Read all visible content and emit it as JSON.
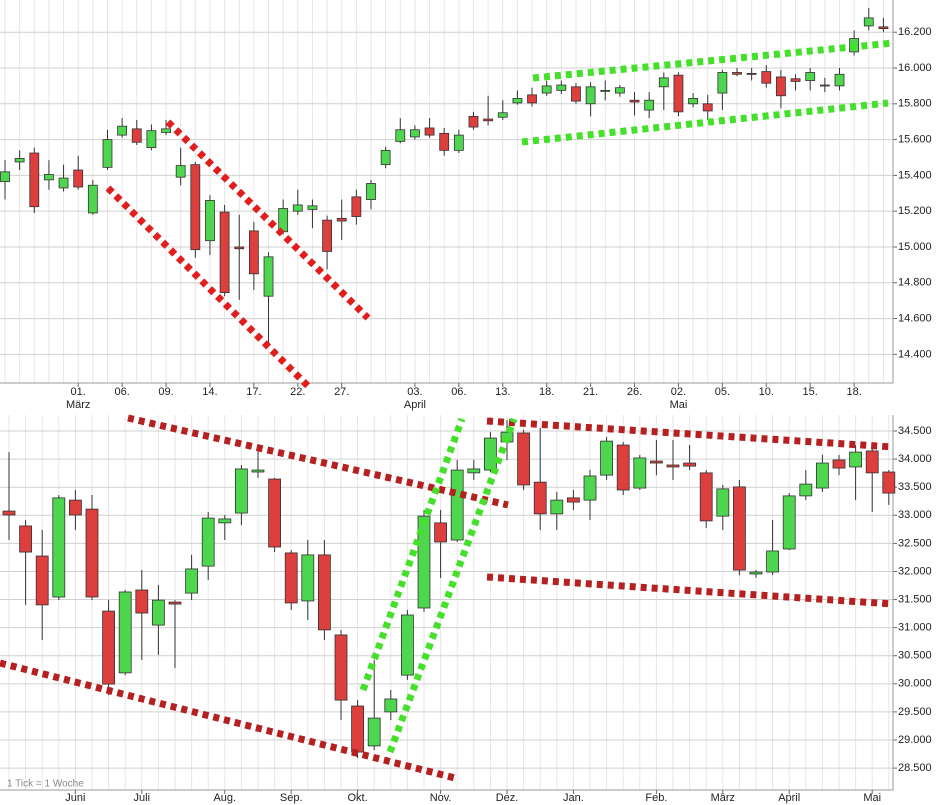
{
  "chart_data": [
    {
      "type": "candlestick",
      "categories": [
        null,
        null,
        null,
        null,
        null,
        "01.",
        null,
        null,
        "06.",
        null,
        null,
        "09.",
        null,
        null,
        "14.",
        null,
        null,
        "17.",
        null,
        null,
        "22.",
        null,
        null,
        "27.",
        null,
        null,
        null,
        null,
        "03.",
        null,
        null,
        "06.",
        null,
        null,
        "13.",
        null,
        null,
        "18.",
        null,
        null,
        "21.",
        null,
        null,
        "26.",
        null,
        null,
        "02.",
        null,
        null,
        "05.",
        null,
        null,
        "10.",
        null,
        null,
        "15.",
        null,
        null,
        "18.",
        null,
        null
      ],
      "category_groups": [
        null,
        null,
        null,
        null,
        null,
        "März",
        null,
        null,
        null,
        null,
        null,
        null,
        null,
        null,
        null,
        null,
        null,
        null,
        null,
        null,
        null,
        null,
        null,
        null,
        null,
        null,
        null,
        null,
        "April",
        null,
        null,
        null,
        null,
        null,
        null,
        null,
        null,
        null,
        null,
        null,
        null,
        null,
        null,
        null,
        null,
        null,
        "Mai",
        null,
        null,
        null,
        null,
        null,
        null,
        null,
        null,
        null,
        null,
        null,
        null,
        null,
        null
      ],
      "open": [
        15365,
        15475,
        15525,
        15375,
        15330,
        15430,
        15190,
        15445,
        15625,
        15660,
        15555,
        15640,
        15390,
        15460,
        15035,
        15195,
        15000,
        15090,
        14725,
        15085,
        15200,
        15210,
        15150,
        15160,
        15280,
        15265,
        15460,
        15590,
        15615,
        15665,
        15635,
        15540,
        15730,
        15715,
        15725,
        15805,
        15850,
        15860,
        15875,
        15895,
        15800,
        15870,
        15860,
        15820,
        15765,
        15895,
        15960,
        15800,
        15800,
        15860,
        15975,
        15970,
        15980,
        15950,
        15940,
        15930,
        15905,
        15900,
        16090,
        16235,
        16230
      ],
      "high": [
        15485,
        15540,
        15555,
        15485,
        15460,
        15510,
        15375,
        15655,
        15720,
        15710,
        15685,
        15710,
        15555,
        15475,
        15290,
        15235,
        15180,
        15140,
        14970,
        15265,
        15320,
        15265,
        15175,
        15265,
        15320,
        15375,
        15560,
        15720,
        15680,
        15720,
        15665,
        15655,
        15755,
        15845,
        15820,
        15875,
        15890,
        15930,
        15930,
        15915,
        15920,
        15930,
        15905,
        15865,
        15865,
        15975,
        15975,
        15860,
        15850,
        15990,
        16000,
        16000,
        16015,
        15990,
        15965,
        16000,
        15945,
        16000,
        16210,
        16335,
        16280
      ],
      "low": [
        15265,
        15430,
        15190,
        15320,
        15310,
        15320,
        15180,
        15430,
        15610,
        15570,
        15540,
        15625,
        15345,
        14940,
        14955,
        14725,
        14705,
        14760,
        14455,
        15070,
        15180,
        15105,
        14875,
        15040,
        15125,
        15210,
        15440,
        15580,
        15600,
        15610,
        15510,
        15525,
        15655,
        15680,
        15710,
        15795,
        15785,
        15845,
        15855,
        15800,
        15730,
        15820,
        15840,
        15735,
        15720,
        15765,
        15730,
        15780,
        15710,
        15765,
        15955,
        15930,
        15890,
        15775,
        15875,
        15875,
        15865,
        15875,
        16070,
        16210,
        16200
      ],
      "close": [
        15420,
        15495,
        15225,
        15405,
        15385,
        15335,
        15345,
        15600,
        15675,
        15585,
        15650,
        15660,
        15455,
        14985,
        15260,
        14745,
        14990,
        14850,
        14945,
        15215,
        15235,
        15230,
        14975,
        15145,
        15170,
        15355,
        15540,
        15655,
        15655,
        15625,
        15540,
        15625,
        15670,
        15705,
        15750,
        15830,
        15805,
        15900,
        15905,
        15815,
        15895,
        15875,
        15890,
        15810,
        15820,
        15945,
        15755,
        15830,
        15760,
        15975,
        15965,
        15965,
        15915,
        15845,
        15925,
        15975,
        15900,
        15965,
        16165,
        16280,
        16220
      ],
      "up_color": "#4fd64f",
      "down_color": "#dd3f3f",
      "ylim": [
        14240,
        16380
      ],
      "yticks": [
        {
          "value": 14400,
          "label": "14.400"
        },
        {
          "value": 14600,
          "label": "14.600"
        },
        {
          "value": 14800,
          "label": "14.800"
        },
        {
          "value": 15000,
          "label": "15.000"
        },
        {
          "value": 15200,
          "label": "15.200"
        },
        {
          "value": 15400,
          "label": "15.400"
        },
        {
          "value": 15600,
          "label": "15.600"
        },
        {
          "value": 15800,
          "label": "15.800"
        },
        {
          "value": 16000,
          "label": "16.000"
        },
        {
          "value": 16200,
          "label": "16.200"
        }
      ],
      "grid": true
    },
    {
      "type": "candlestick",
      "annotation": "1 Tick = 1 Woche",
      "categories": [
        null,
        null,
        null,
        null,
        "Juni",
        null,
        null,
        null,
        "Juli",
        null,
        null,
        null,
        null,
        "Aug.",
        null,
        null,
        null,
        "Sep.",
        null,
        null,
        null,
        "Okt.",
        null,
        null,
        null,
        null,
        "Nov.",
        null,
        null,
        null,
        "Dez.",
        null,
        null,
        null,
        "Jan.",
        null,
        null,
        null,
        null,
        "Feb.",
        null,
        null,
        null,
        "März",
        null,
        null,
        null,
        "April",
        null,
        null,
        null,
        null,
        "Mai",
        null
      ],
      "open": [
        33075,
        32810,
        32275,
        31545,
        33270,
        33110,
        31295,
        30195,
        31670,
        31045,
        31455,
        31615,
        32095,
        32865,
        33040,
        33770,
        33645,
        32330,
        31475,
        32295,
        30870,
        29605,
        28895,
        29500,
        30155,
        31350,
        32865,
        32560,
        33755,
        33805,
        34305,
        34465,
        33590,
        33025,
        33310,
        33270,
        33715,
        34250,
        33485,
        33965,
        33895,
        33930,
        33755,
        32985,
        33505,
        31955,
        31990,
        32400,
        33345,
        33485,
        33985,
        33860,
        34145,
        33770
      ],
      "high": [
        34125,
        32915,
        32740,
        33360,
        33450,
        33360,
        31490,
        31670,
        32025,
        31760,
        31490,
        32295,
        33060,
        33005,
        33895,
        34250,
        33665,
        32380,
        32560,
        32560,
        30960,
        29710,
        30425,
        29890,
        31315,
        33095,
        33095,
        33985,
        33985,
        34480,
        34695,
        34520,
        34555,
        33415,
        33450,
        33805,
        34395,
        34305,
        34075,
        34340,
        34340,
        34250,
        33805,
        33540,
        33630,
        32025,
        32915,
        33395,
        33805,
        34075,
        34075,
        34250,
        34200,
        33805
      ],
      "low": [
        32560,
        31405,
        30780,
        31490,
        32740,
        31490,
        29800,
        30155,
        30425,
        30515,
        30280,
        31490,
        31850,
        32560,
        32825,
        33665,
        32345,
        31315,
        31135,
        30780,
        29355,
        28680,
        28820,
        29355,
        30070,
        31280,
        31885,
        32525,
        33630,
        33770,
        33985,
        33450,
        32740,
        32740,
        33095,
        32915,
        33630,
        33360,
        33450,
        33715,
        33630,
        33805,
        32775,
        32740,
        31935,
        31885,
        31935,
        32380,
        33270,
        33415,
        33715,
        33270,
        33060,
        33185
      ],
      "close": [
        33005,
        32345,
        31405,
        33310,
        33005,
        31545,
        29995,
        31635,
        31260,
        31490,
        31420,
        32045,
        32950,
        32935,
        33825,
        33805,
        32435,
        31440,
        32295,
        30960,
        29710,
        28785,
        29390,
        29730,
        31225,
        32985,
        32525,
        33805,
        33825,
        34375,
        34480,
        33540,
        33025,
        33270,
        33235,
        33700,
        34320,
        33450,
        34020,
        33930,
        33860,
        33875,
        32900,
        33470,
        32025,
        31990,
        32365,
        33345,
        33555,
        33930,
        33840,
        34125,
        33755,
        33395
      ],
      "up_color": "#4fd64f",
      "down_color": "#dd3f3f",
      "ylim": [
        28110,
        34785
      ],
      "yticks": [
        {
          "value": 28500,
          "label": "28.500"
        },
        {
          "value": 29000,
          "label": "29.000"
        },
        {
          "value": 29500,
          "label": "29.500"
        },
        {
          "value": 30000,
          "label": "30.000"
        },
        {
          "value": 30500,
          "label": "30.500"
        },
        {
          "value": 31000,
          "label": "31.000"
        },
        {
          "value": 31500,
          "label": "31.500"
        },
        {
          "value": 32000,
          "label": "32.000"
        },
        {
          "value": 32500,
          "label": "32.500"
        },
        {
          "value": 33000,
          "label": "33.000"
        },
        {
          "value": 33500,
          "label": "33.500"
        },
        {
          "value": 34000,
          "label": "34.000"
        },
        {
          "value": 34500,
          "label": "34.500"
        }
      ],
      "grid": true
    }
  ]
}
